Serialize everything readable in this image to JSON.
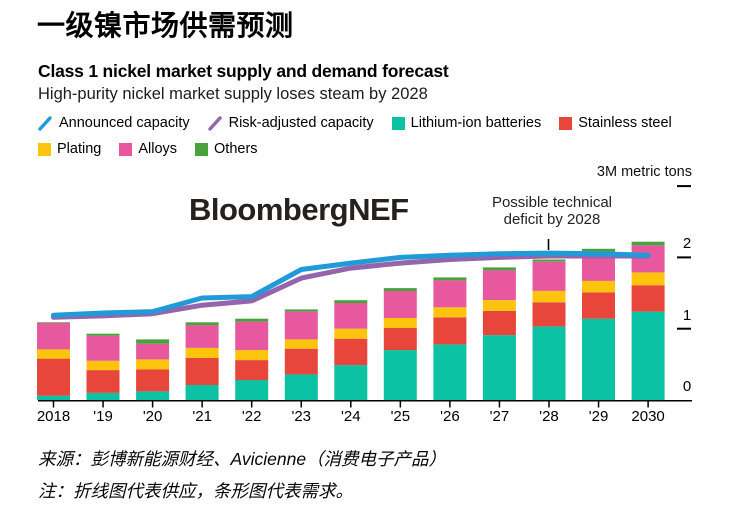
{
  "page": {
    "title_zh": "一级镍市场供需预测",
    "title_en": "Class 1 nickel market supply and demand forecast",
    "subtitle": "High-purity nickel market supply loses steam by 2028",
    "watermark": "BloombergNEF",
    "source_note": "来源：彭博新能源财经、Avicienne（消费电子产品）",
    "method_note": "注：折线图代表供应，条形图代表需求。"
  },
  "annotation": {
    "line1": "Possible technical",
    "line2": "deficit by 2028"
  },
  "axis": {
    "unit_label": "3M metric tons",
    "y_tick_labels": [
      "0",
      "1",
      "2"
    ],
    "y_tick_values": [
      0,
      1,
      2
    ],
    "x_labels": [
      "2018",
      "'19",
      "'20",
      "'21",
      "'22",
      "'23",
      "'24",
      "'25",
      "'26",
      "'27",
      "'28",
      "'29",
      "2030"
    ]
  },
  "legend": {
    "rows": [
      [
        {
          "label": "Announced capacity",
          "type": "line",
          "color": "#209bd8"
        },
        {
          "label": "Risk-adjusted capacity",
          "type": "line",
          "color": "#9464ad"
        },
        {
          "label": "Lithium-ion batteries",
          "type": "square",
          "color": "#0cc2a5"
        },
        {
          "label": "Stainless steel",
          "type": "square",
          "color": "#e8463a"
        }
      ],
      [
        {
          "label": "Plating",
          "type": "square",
          "color": "#fcc40d"
        },
        {
          "label": "Alloys",
          "type": "square",
          "color": "#e8589f"
        },
        {
          "label": "Others",
          "type": "square",
          "color": "#48a33d"
        }
      ]
    ]
  },
  "chart_data": {
    "type": "bar",
    "subtype": "stacked bars (demand) with overlay lines (supply)",
    "title": "Class 1 nickel market supply and demand forecast",
    "subtitle": "High-purity nickel market supply loses steam by 2028",
    "unit": "million metric tons",
    "ylabel": "3M metric tons",
    "ylim": [
      0,
      3
    ],
    "y_ticks": [
      0,
      1,
      2,
      3
    ],
    "grid": false,
    "legend_position": "top",
    "annotation": "Possible technical deficit by 2028",
    "categories": [
      "2018",
      "'19",
      "'20",
      "'21",
      "'22",
      "'23",
      "'24",
      "'25",
      "'26",
      "'27",
      "'28",
      "'29",
      "2030"
    ],
    "bar_series": [
      {
        "name": "Lithium-ion batteries",
        "color": "#0cc2a5",
        "values": [
          0.06,
          0.1,
          0.12,
          0.21,
          0.28,
          0.36,
          0.49,
          0.7,
          0.78,
          0.91,
          1.03,
          1.14,
          1.24
        ]
      },
      {
        "name": "Stainless steel",
        "color": "#e8463a",
        "values": [
          0.52,
          0.32,
          0.31,
          0.38,
          0.28,
          0.36,
          0.37,
          0.31,
          0.38,
          0.34,
          0.34,
          0.37,
          0.37
        ]
      },
      {
        "name": "Plating",
        "color": "#fcc40d",
        "values": [
          0.13,
          0.13,
          0.14,
          0.14,
          0.14,
          0.13,
          0.14,
          0.14,
          0.14,
          0.15,
          0.16,
          0.16,
          0.18
        ]
      },
      {
        "name": "Alloys",
        "color": "#e8589f",
        "values": [
          0.37,
          0.35,
          0.22,
          0.32,
          0.4,
          0.39,
          0.36,
          0.38,
          0.38,
          0.42,
          0.41,
          0.4,
          0.38
        ]
      },
      {
        "name": "Others",
        "color": "#48a33d",
        "values": [
          0.01,
          0.03,
          0.06,
          0.04,
          0.04,
          0.03,
          0.04,
          0.04,
          0.04,
          0.04,
          0.03,
          0.05,
          0.05
        ]
      }
    ],
    "line_series": [
      {
        "name": "Announced capacity",
        "color": "#209bd8",
        "values": [
          1.19,
          1.22,
          1.24,
          1.43,
          1.45,
          1.83,
          1.92,
          2.0,
          2.03,
          2.05,
          2.06,
          2.05,
          2.03
        ]
      },
      {
        "name": "Risk-adjusted capacity",
        "color": "#9464ad",
        "values": [
          1.16,
          1.18,
          1.21,
          1.33,
          1.39,
          1.71,
          1.85,
          1.92,
          1.97,
          2.0,
          2.02,
          2.02,
          2.02
        ]
      }
    ]
  }
}
